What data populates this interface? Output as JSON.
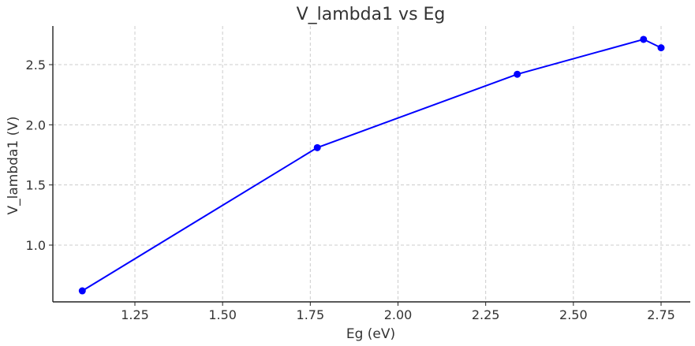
{
  "chart_data": {
    "type": "line",
    "title": "V_lambda1 vs Eg",
    "xlabel": "Eg (eV)",
    "ylabel": "V_lambda1 (V)",
    "xlim": [
      1.02,
      2.84
    ],
    "ylim": [
      1.52,
      2.82
    ],
    "ylim_note": "",
    "x_ticks": [
      1.25,
      1.5,
      1.75,
      2.0,
      2.25,
      2.5,
      2.75
    ],
    "x_tick_labels": [
      "1.25",
      "1.50",
      "1.75",
      "2.00",
      "2.25",
      "2.50",
      "2.75"
    ],
    "y_ticks": [
      1.0,
      1.5,
      2.0,
      2.5
    ],
    "y_tick_labels": [
      "1.0",
      "1.5",
      "2.0",
      "2.5"
    ],
    "grid": true,
    "series": [
      {
        "color": "#0000ff",
        "marker": "circle",
        "x": [
          1.1,
          1.77,
          2.34,
          2.7,
          2.75
        ],
        "y": [
          0.62,
          1.81,
          2.42,
          2.71,
          2.64
        ]
      }
    ]
  }
}
